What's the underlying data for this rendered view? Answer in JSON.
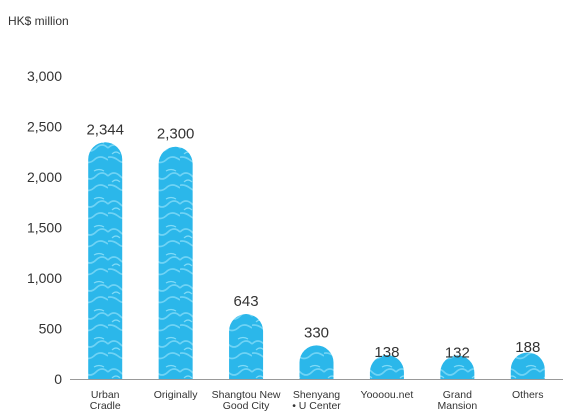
{
  "chart_data": {
    "type": "bar",
    "unit_label": "HK$ million",
    "categories": [
      [
        "Urban",
        "Cradle"
      ],
      [
        "Originally"
      ],
      [
        "Shangtou New",
        "Good City"
      ],
      [
        "Shenyang",
        "• U Center"
      ],
      [
        "Yoooou.net"
      ],
      [
        "Grand",
        "Mansion"
      ],
      [
        "Others"
      ]
    ],
    "values": [
      2344,
      2300,
      643,
      330,
      138,
      132,
      188
    ],
    "value_labels": [
      "2,344",
      "2,300",
      "643",
      "330",
      "138",
      "132",
      "188"
    ],
    "yticks": [
      0,
      500,
      1000,
      1500,
      2000,
      2500,
      3000
    ],
    "ytick_labels": [
      "0",
      "500",
      "1,000",
      "1,500",
      "2,000",
      "2,500",
      "3,000"
    ],
    "ylim": [
      0,
      3000
    ],
    "bar_color": "#2bb7ea",
    "bar_pattern_color": "#5ccdf3",
    "axis_color": "#999999"
  }
}
